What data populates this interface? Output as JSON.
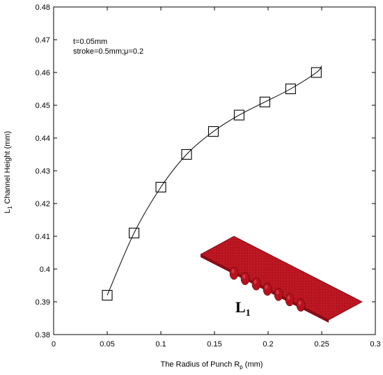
{
  "chart_data": {
    "type": "line",
    "xlabel": {
      "main": "The Radius of Punch R",
      "sub": "p",
      "unit": " (mm)"
    },
    "ylabel": {
      "main": "L",
      "sub": "1",
      "rest": " Channel Height (mm)"
    },
    "xlim": [
      0,
      0.3
    ],
    "ylim": [
      0.38,
      0.48
    ],
    "x_ticks": [
      "0",
      "0.05",
      "0.1",
      "0.15",
      "0.2",
      "0.25",
      "0.3"
    ],
    "y_ticks": [
      "0.38",
      "0.39",
      "0.4",
      "0.41",
      "0.42",
      "0.43",
      "0.44",
      "0.45",
      "0.46",
      "0.47",
      "0.48"
    ],
    "annotations": [
      "t=0.05mm",
      "stroke=0.5mm;μ=0.2"
    ],
    "series": [
      {
        "x": [
          0.05,
          0.075,
          0.1,
          0.124,
          0.149,
          0.173,
          0.197,
          0.221,
          0.245
        ],
        "y": [
          0.392,
          0.411,
          0.425,
          0.435,
          0.442,
          0.447,
          0.451,
          0.455,
          0.46
        ],
        "marker": "square-open",
        "color": "#000000"
      }
    ],
    "curve_extension_x": 0.25,
    "curve_extension_y": 0.462,
    "inset": {
      "label_main": "L",
      "label_sub": "1",
      "color": "#c8102e"
    },
    "grid": false
  }
}
